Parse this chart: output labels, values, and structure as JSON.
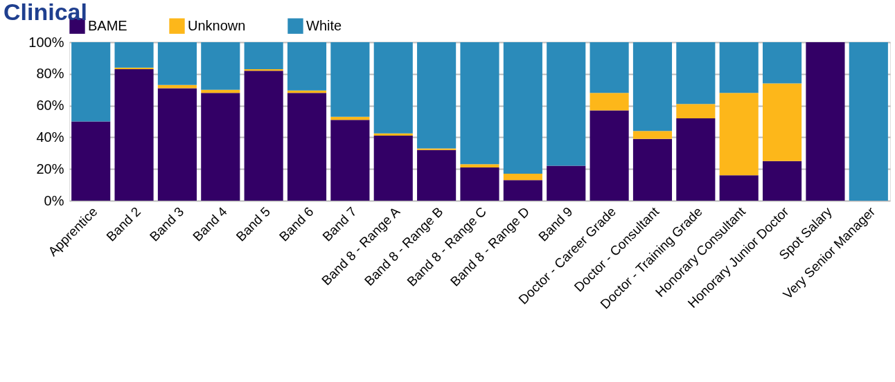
{
  "chart_data": {
    "type": "bar",
    "title": "Clinical",
    "stacked": true,
    "categories": [
      "Apprentice",
      "Band 2",
      "Band 3",
      "Band 4",
      "Band 5",
      "Band 6",
      "Band 7",
      "Band 8 - Range A",
      "Band 8 - Range B",
      "Band 8 - Range C",
      "Band 8 - Range D",
      "Band 9",
      "Doctor - Career Grade",
      "Doctor - Consultant",
      "Doctor - Training Grade",
      "Honorary Consultant",
      "Honorary Junior Doctor",
      "Spot Salary",
      "Very Senior Manager"
    ],
    "series": [
      {
        "name": "BAME",
        "color": "#330066",
        "values": [
          50,
          83,
          71,
          68,
          82,
          68,
          51,
          41,
          32,
          21,
          13,
          22,
          57,
          39,
          52,
          16,
          25,
          100,
          0
        ]
      },
      {
        "name": "Unknown",
        "color": "#fdb71a",
        "values": [
          0,
          1,
          2,
          2,
          1,
          1.5,
          2,
          1.5,
          1,
          2,
          4,
          0,
          11,
          5,
          9,
          52,
          49,
          0,
          0
        ]
      },
      {
        "name": "White",
        "color": "#2b8bba",
        "values": [
          50,
          16,
          27,
          30,
          17,
          30.5,
          47,
          57.5,
          67,
          77,
          83,
          78,
          32,
          56,
          39,
          32,
          26,
          0,
          100
        ]
      }
    ],
    "ylim": [
      0,
      100
    ],
    "yticks": [
      {
        "value": 0,
        "label": "0%"
      },
      {
        "value": 20,
        "label": "20%"
      },
      {
        "value": 40,
        "label": "40%"
      },
      {
        "value": 60,
        "label": "60%"
      },
      {
        "value": 80,
        "label": "80%"
      },
      {
        "value": 100,
        "label": "100%"
      }
    ],
    "grid": "y",
    "legend": "top"
  }
}
